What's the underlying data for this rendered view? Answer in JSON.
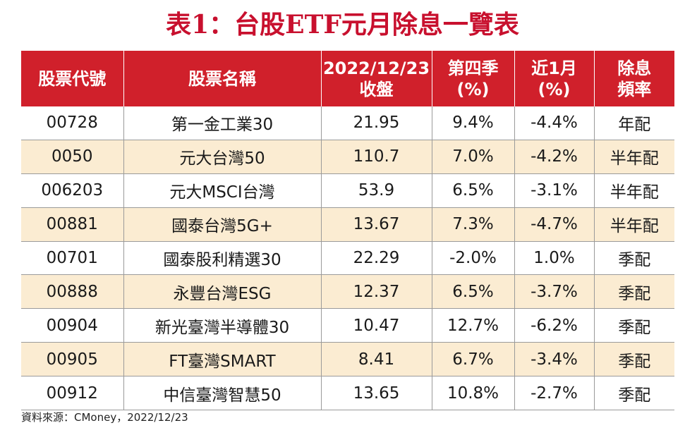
{
  "title": "表1：台股ETF元月除息一覽表",
  "headers": [
    [
      "股票代號"
    ],
    [
      "股票名稱"
    ],
    [
      "2022/12/23",
      "收盤"
    ],
    [
      "第四季",
      "(%)"
    ],
    [
      "近1月",
      "(%)"
    ],
    [
      "除息",
      "頻率"
    ]
  ],
  "rows": [
    [
      "00728",
      "第一金工業30",
      "21.95",
      "9.4%",
      "-4.4%",
      "年配"
    ],
    [
      "0050",
      "元大台灣50",
      "110.7",
      "7.0%",
      "-4.2%",
      "半年配"
    ],
    [
      "006203",
      "元大MSCI台灣",
      "53.9",
      "6.5%",
      "-3.1%",
      "半年配"
    ],
    [
      "00881",
      "國泰台灣5G+",
      "13.67",
      "7.3%",
      "-4.7%",
      "半年配"
    ],
    [
      "00701",
      "國泰股利精選30",
      "22.29",
      "-2.0%",
      "1.0%",
      "季配"
    ],
    [
      "00888",
      "永豐台灣ESG",
      "12.37",
      "6.5%",
      "-3.7%",
      "季配"
    ],
    [
      "00904",
      "新光臺灣半導體30",
      "10.47",
      "12.7%",
      "-6.2%",
      "季配"
    ],
    [
      "00905",
      "FT臺灣SMART",
      "8.41",
      "6.7%",
      "-3.4%",
      "季配"
    ],
    [
      "00912",
      "中信臺灣智慧50",
      "13.65",
      "10.8%",
      "-2.7%",
      "季配"
    ]
  ],
  "source": "資料來源：CMoney，2022/12/23",
  "colors": {
    "header_bg": "#d0202b",
    "stripe_bg": "#fbecd2",
    "title": "#c8102e"
  }
}
